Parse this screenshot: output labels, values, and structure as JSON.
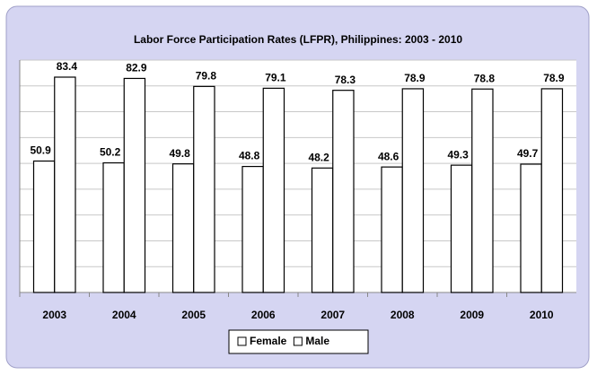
{
  "chart_data": {
    "type": "bar",
    "title": "Labor Force Participation Rates (LFPR), Philippines: 2003 - 2010",
    "categories": [
      "2003",
      "2004",
      "2005",
      "2006",
      "2007",
      "2008",
      "2009",
      "2010"
    ],
    "series": [
      {
        "name": "Female",
        "color": "#ffffff",
        "values": [
          50.9,
          50.2,
          49.8,
          48.8,
          48.2,
          48.6,
          49.3,
          49.7
        ]
      },
      {
        "name": "Male",
        "color": "#ffffff",
        "values": [
          83.4,
          82.9,
          79.8,
          79.1,
          78.3,
          78.9,
          78.8,
          78.9
        ]
      }
    ],
    "ylim": [
      0,
      90
    ],
    "yticks": [
      0,
      10,
      20,
      30,
      40,
      50,
      60,
      70,
      80,
      90
    ],
    "grid": true,
    "legend": "bottom"
  }
}
